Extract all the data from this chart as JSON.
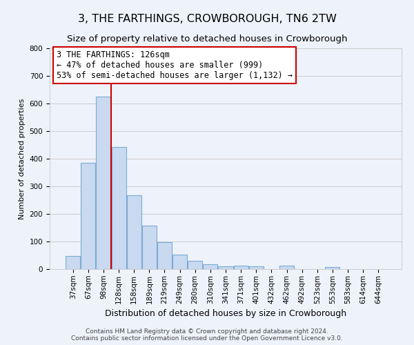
{
  "title": "3, THE FARTHINGS, CROWBOROUGH, TN6 2TW",
  "subtitle": "Size of property relative to detached houses in Crowborough",
  "xlabel": "Distribution of detached houses by size in Crowborough",
  "ylabel": "Number of detached properties",
  "categories": [
    "37sqm",
    "67sqm",
    "98sqm",
    "128sqm",
    "158sqm",
    "189sqm",
    "219sqm",
    "249sqm",
    "280sqm",
    "310sqm",
    "341sqm",
    "371sqm",
    "401sqm",
    "432sqm",
    "462sqm",
    "492sqm",
    "523sqm",
    "553sqm",
    "583sqm",
    "614sqm",
    "644sqm"
  ],
  "values": [
    48,
    385,
    625,
    443,
    267,
    157,
    97,
    52,
    30,
    17,
    10,
    12,
    10,
    0,
    12,
    0,
    0,
    7,
    0,
    0,
    0
  ],
  "bar_color": "#c9d9f0",
  "bar_edge_color": "#7aabd4",
  "grid_color": "#cccccc",
  "bg_color": "#eef2fb",
  "vline_x": 3,
  "vline_color": "#cc0000",
  "annotation_text": "3 THE FARTHINGS: 126sqm\n← 47% of detached houses are smaller (999)\n53% of semi-detached houses are larger (1,132) →",
  "annotation_box_color": "#ffffff",
  "annotation_border_color": "#cc0000",
  "footer1": "Contains HM Land Registry data © Crown copyright and database right 2024.",
  "footer2": "Contains public sector information licensed under the Open Government Licence v3.0.",
  "ylim": [
    0,
    800
  ],
  "yticks": [
    0,
    100,
    200,
    300,
    400,
    500,
    600,
    700,
    800
  ],
  "title_fontsize": 11.5,
  "subtitle_fontsize": 9.5,
  "xlabel_fontsize": 9,
  "ylabel_fontsize": 8,
  "tick_fontsize": 7.5,
  "annotation_fontsize": 8.5,
  "footer_fontsize": 6.5
}
